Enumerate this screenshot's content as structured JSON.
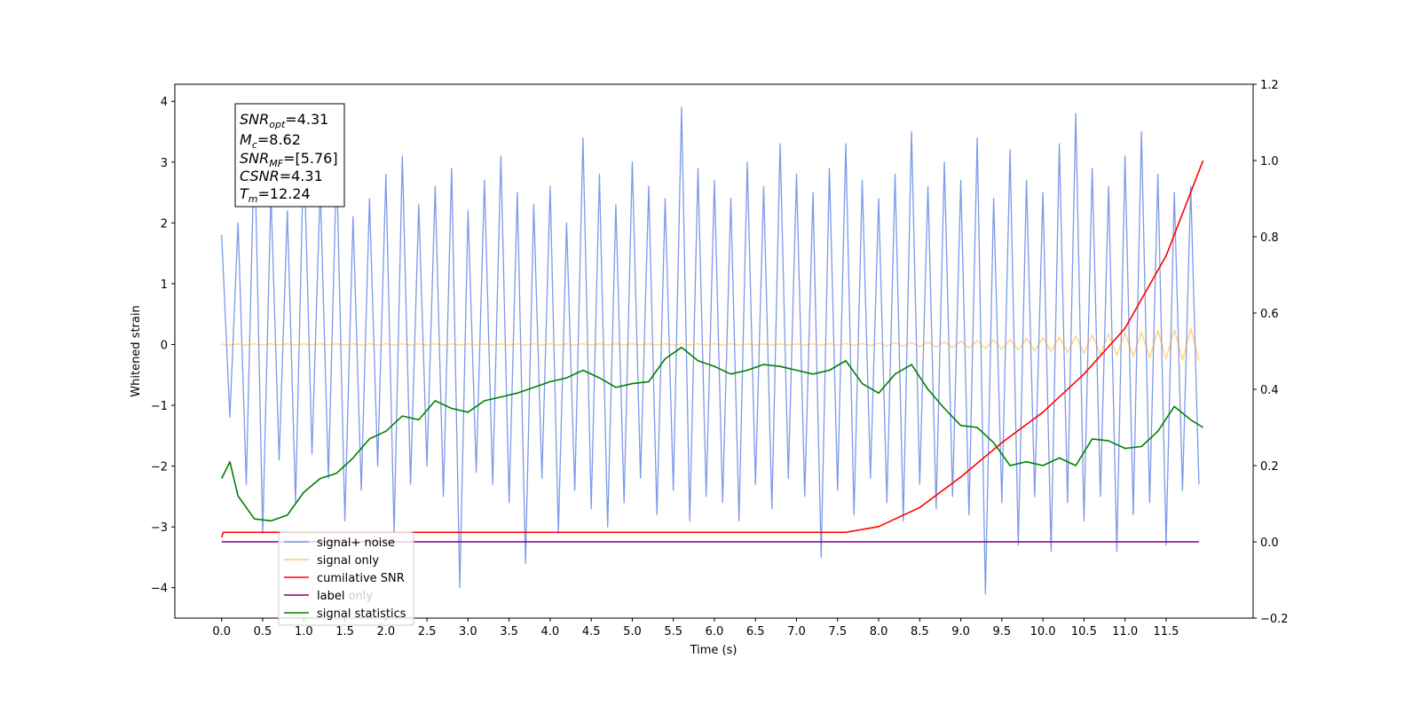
{
  "chart_data": {
    "type": "line",
    "xlabel": "Time (s)",
    "ylabel": "Whitened strain",
    "xlim": [
      -0.57,
      12.56
    ],
    "ylim": [
      -4.5,
      4.28
    ],
    "y2lim": [
      -0.2,
      1.2
    ],
    "xticks": [
      {
        "value": 0,
        "label": "0.0"
      },
      0.5,
      {
        "value": 1,
        "label": "1.0"
      },
      1.5,
      {
        "value": 2,
        "label": "2.0"
      },
      2.5,
      {
        "value": 3,
        "label": "3.0"
      },
      3.5,
      {
        "value": 4,
        "label": "4.0"
      },
      4.5,
      {
        "value": 5,
        "label": "5.0"
      },
      5.5,
      {
        "value": 6,
        "label": "6.0"
      },
      6.5,
      {
        "value": 7,
        "label": "7.0"
      },
      7.5,
      {
        "value": 8,
        "label": "8.0"
      },
      8.5,
      {
        "value": 9,
        "label": "9.0"
      },
      9.5,
      {
        "value": 10,
        "label": "10.0"
      },
      10.5,
      {
        "value": 11,
        "label": "11.0"
      },
      11.5
    ],
    "yticks": [
      {
        "value": -4,
        "label": "−4"
      },
      {
        "value": -3,
        "label": "−3"
      },
      {
        "value": -2,
        "label": "−2"
      },
      {
        "value": -1,
        "label": "−1"
      },
      0,
      1,
      2,
      3,
      4
    ],
    "y2ticks": [
      {
        "value": -0.2,
        "label": "−0.2"
      },
      {
        "value": 0,
        "label": "0.0"
      },
      0.2,
      0.4,
      0.6,
      0.8,
      {
        "value": 1,
        "label": "1.0"
      },
      1.2
    ],
    "legend_loc": "lower left",
    "legend_ghost": "label only",
    "annotations": [
      {
        "symbol": "SNR",
        "subscript": "opt",
        "text": "=4.31"
      },
      {
        "symbol": "M",
        "subscript": "c",
        "text": "=8.62"
      },
      {
        "symbol": "SNR",
        "subscript": "MF",
        "text": "=[5.76]"
      },
      {
        "symbol": "CSNR",
        "subscript": "",
        "text": "=4.31"
      },
      {
        "symbol": "T",
        "subscript": "m",
        "text": "=12.24"
      }
    ],
    "series": [
      {
        "name": "signal+ noise",
        "color": "#6f8ee6",
        "opacity": 0.9,
        "axis": "y",
        "x": [
          0,
          0.1,
          0.2,
          0.3,
          0.4,
          0.5,
          0.6,
          0.7,
          0.8,
          0.9,
          1,
          1.1,
          1.2,
          1.3,
          1.4,
          1.5,
          1.6,
          1.7,
          1.8,
          1.9,
          2,
          2.1,
          2.2,
          2.3,
          2.4,
          2.5,
          2.6,
          2.7,
          2.8,
          2.9,
          3,
          3.1,
          3.2,
          3.3,
          3.4,
          3.5,
          3.6,
          3.7,
          3.8,
          3.9,
          4,
          4.1,
          4.2,
          4.3,
          4.4,
          4.5,
          4.6,
          4.7,
          4.8,
          4.9,
          5,
          5.1,
          5.2,
          5.3,
          5.4,
          5.5,
          5.6,
          5.7,
          5.8,
          5.9,
          6,
          6.1,
          6.2,
          6.3,
          6.4,
          6.5,
          6.6,
          6.7,
          6.8,
          6.9,
          7,
          7.1,
          7.2,
          7.3,
          7.4,
          7.5,
          7.6,
          7.7,
          7.8,
          7.9,
          8,
          8.1,
          8.2,
          8.3,
          8.4,
          8.5,
          8.6,
          8.7,
          8.8,
          8.9,
          9,
          9.1,
          9.2,
          9.3,
          9.4,
          9.5,
          9.6,
          9.7,
          9.8,
          9.9,
          10,
          10.1,
          10.2,
          10.3,
          10.4,
          10.5,
          10.6,
          10.7,
          10.8,
          10.9,
          11,
          11.1,
          11.2,
          11.3,
          11.4,
          11.5,
          11.6,
          11.7,
          11.8,
          11.9
        ],
        "values": [
          1.8,
          -1.2,
          2.0,
          -2.3,
          3.4,
          -3.1,
          2.5,
          -1.9,
          2.2,
          -2.6,
          3.3,
          -1.8,
          2.6,
          -2.2,
          3.0,
          -2.9,
          2.1,
          -2.4,
          2.4,
          -2.0,
          2.8,
          -3.1,
          3.1,
          -2.3,
          2.3,
          -2.0,
          2.6,
          -2.5,
          2.9,
          -4.0,
          2.2,
          -2.1,
          2.7,
          -2.3,
          3.1,
          -2.6,
          2.5,
          -3.6,
          2.3,
          -2.2,
          2.6,
          -3.1,
          2.0,
          -2.4,
          3.4,
          -2.7,
          2.8,
          -3.0,
          2.3,
          -2.6,
          3.0,
          -2.2,
          2.6,
          -2.8,
          2.4,
          -2.4,
          3.9,
          -2.9,
          2.9,
          -2.5,
          2.7,
          -2.6,
          2.4,
          -2.9,
          3.0,
          -2.3,
          2.6,
          -2.7,
          3.3,
          -2.2,
          2.8,
          -2.5,
          2.5,
          -3.5,
          2.9,
          -2.4,
          3.3,
          -2.8,
          2.7,
          -2.2,
          2.4,
          -2.6,
          2.8,
          -2.9,
          3.5,
          -2.3,
          2.6,
          -2.7,
          3.0,
          -2.5,
          2.7,
          -2.8,
          3.4,
          -4.1,
          2.4,
          -2.6,
          3.2,
          -3.3,
          2.7,
          -2.5,
          2.5,
          -3.4,
          3.3,
          -2.6,
          3.8,
          -2.9,
          2.9,
          -2.5,
          2.6,
          -3.4,
          3.1,
          -2.8,
          3.5,
          -2.6,
          2.8,
          -3.3,
          2.5,
          -2.4,
          2.6,
          -2.3
        ]
      },
      {
        "name": "signal only",
        "color": "#ffa500",
        "opacity": 0.45,
        "axis": "y",
        "x": [
          0,
          0.1,
          0.2,
          0.3,
          0.4,
          0.5,
          0.6,
          0.7,
          0.8,
          0.9,
          1,
          1.1,
          1.2,
          1.3,
          1.4,
          1.5,
          1.6,
          1.7,
          1.8,
          1.9,
          2,
          2.1,
          2.2,
          2.3,
          2.4,
          2.5,
          2.6,
          2.7,
          2.8,
          2.9,
          3,
          3.1,
          3.2,
          3.3,
          3.4,
          3.5,
          3.6,
          3.7,
          3.8,
          3.9,
          4,
          4.1,
          4.2,
          4.3,
          4.4,
          4.5,
          4.6,
          4.7,
          4.8,
          4.9,
          5,
          5.1,
          5.2,
          5.3,
          5.4,
          5.5,
          5.6,
          5.7,
          5.8,
          5.9,
          6,
          6.1,
          6.2,
          6.3,
          6.4,
          6.5,
          6.6,
          6.7,
          6.8,
          6.9,
          7,
          7.1,
          7.2,
          7.3,
          7.4,
          7.5,
          7.6,
          7.7,
          7.8,
          7.9,
          8,
          8.1,
          8.2,
          8.3,
          8.4,
          8.5,
          8.6,
          8.7,
          8.8,
          8.9,
          9,
          9.1,
          9.2,
          9.3,
          9.4,
          9.5,
          9.6,
          9.7,
          9.8,
          9.9,
          10,
          10.1,
          10.2,
          10.3,
          10.4,
          10.5,
          10.6,
          10.7,
          10.8,
          10.9,
          11,
          11.1,
          11.2,
          11.3,
          11.4,
          11.5,
          11.6,
          11.7,
          11.8,
          11.9
        ],
        "values": [
          0.01,
          -0.01,
          0.01,
          -0.01,
          0.01,
          -0.01,
          0.01,
          -0.01,
          0.01,
          -0.01,
          0.01,
          -0.01,
          0.01,
          -0.01,
          0.01,
          -0.01,
          0.01,
          -0.01,
          0.01,
          -0.01,
          0.01,
          -0.01,
          0.01,
          -0.01,
          0.01,
          -0.01,
          0.01,
          -0.01,
          0.01,
          -0.01,
          0.01,
          -0.01,
          0.01,
          -0.01,
          0.01,
          -0.01,
          0.01,
          -0.01,
          0.01,
          -0.01,
          0.01,
          -0.01,
          0.01,
          -0.01,
          0.01,
          -0.01,
          0.01,
          -0.01,
          0.01,
          -0.01,
          0.01,
          -0.01,
          0.01,
          -0.01,
          0.01,
          -0.01,
          0.01,
          -0.01,
          0.01,
          -0.01,
          0.01,
          -0.01,
          0.01,
          -0.01,
          0.01,
          -0.01,
          0.01,
          -0.01,
          0.01,
          -0.01,
          0.01,
          -0.01,
          0.01,
          -0.01,
          0.012,
          -0.013,
          0.014,
          -0.016,
          0.017,
          -0.019,
          0.021,
          -0.023,
          0.026,
          -0.028,
          0.031,
          -0.034,
          0.038,
          -0.041,
          0.045,
          -0.049,
          0.053,
          -0.058,
          0.063,
          -0.068,
          0.073,
          -0.078,
          0.084,
          -0.09,
          0.096,
          -0.102,
          0.109,
          -0.116,
          0.123,
          -0.13,
          0.138,
          -0.146,
          0.154,
          -0.162,
          0.17,
          -0.179,
          0.188,
          -0.197,
          0.207,
          -0.217,
          0.227,
          -0.237,
          0.247,
          -0.258,
          0.269,
          -0.27
        ]
      },
      {
        "name": "cumilative SNR",
        "color": "#ff0000",
        "opacity": 1,
        "axis": "y2",
        "x": [
          0,
          0.02,
          7.6,
          8.0,
          8.5,
          9.0,
          9.5,
          10.0,
          10.5,
          11.0,
          11.5,
          11.95
        ],
        "values": [
          0.012,
          0.025,
          0.025,
          0.04,
          0.09,
          0.17,
          0.26,
          0.34,
          0.44,
          0.56,
          0.75,
          1.0
        ]
      },
      {
        "name": "label",
        "color": "#800080",
        "opacity": 1,
        "axis": "y2",
        "x": [
          0,
          11.9
        ],
        "values": [
          0,
          0
        ]
      },
      {
        "name": "signal statistics",
        "color": "#008000",
        "opacity": 1,
        "axis": "y2",
        "x": [
          0,
          0.1,
          0.2,
          0.4,
          0.6,
          0.8,
          1.0,
          1.2,
          1.4,
          1.6,
          1.8,
          2.0,
          2.2,
          2.4,
          2.6,
          2.8,
          3.0,
          3.2,
          3.4,
          3.6,
          3.8,
          4.0,
          4.2,
          4.4,
          4.6,
          4.8,
          5.0,
          5.2,
          5.4,
          5.6,
          5.8,
          6.0,
          6.2,
          6.4,
          6.6,
          6.8,
          7.0,
          7.2,
          7.4,
          7.6,
          7.8,
          8.0,
          8.2,
          8.4,
          8.6,
          8.8,
          9.0,
          9.2,
          9.4,
          9.6,
          9.8,
          10.0,
          10.2,
          10.4,
          10.6,
          10.8,
          11.0,
          11.2,
          11.4,
          11.6,
          11.8,
          11.95
        ],
        "values": [
          0.166,
          0.21,
          0.12,
          0.06,
          0.055,
          0.07,
          0.13,
          0.166,
          0.18,
          0.22,
          0.27,
          0.29,
          0.33,
          0.32,
          0.37,
          0.35,
          0.34,
          0.37,
          0.38,
          0.39,
          0.405,
          0.42,
          0.43,
          0.45,
          0.43,
          0.405,
          0.415,
          0.42,
          0.48,
          0.51,
          0.475,
          0.46,
          0.44,
          0.45,
          0.465,
          0.46,
          0.45,
          0.44,
          0.45,
          0.475,
          0.415,
          0.39,
          0.44,
          0.465,
          0.4,
          0.35,
          0.305,
          0.3,
          0.26,
          0.2,
          0.21,
          0.2,
          0.22,
          0.2,
          0.27,
          0.265,
          0.245,
          0.25,
          0.29,
          0.355,
          0.32,
          0.3
        ]
      }
    ]
  }
}
